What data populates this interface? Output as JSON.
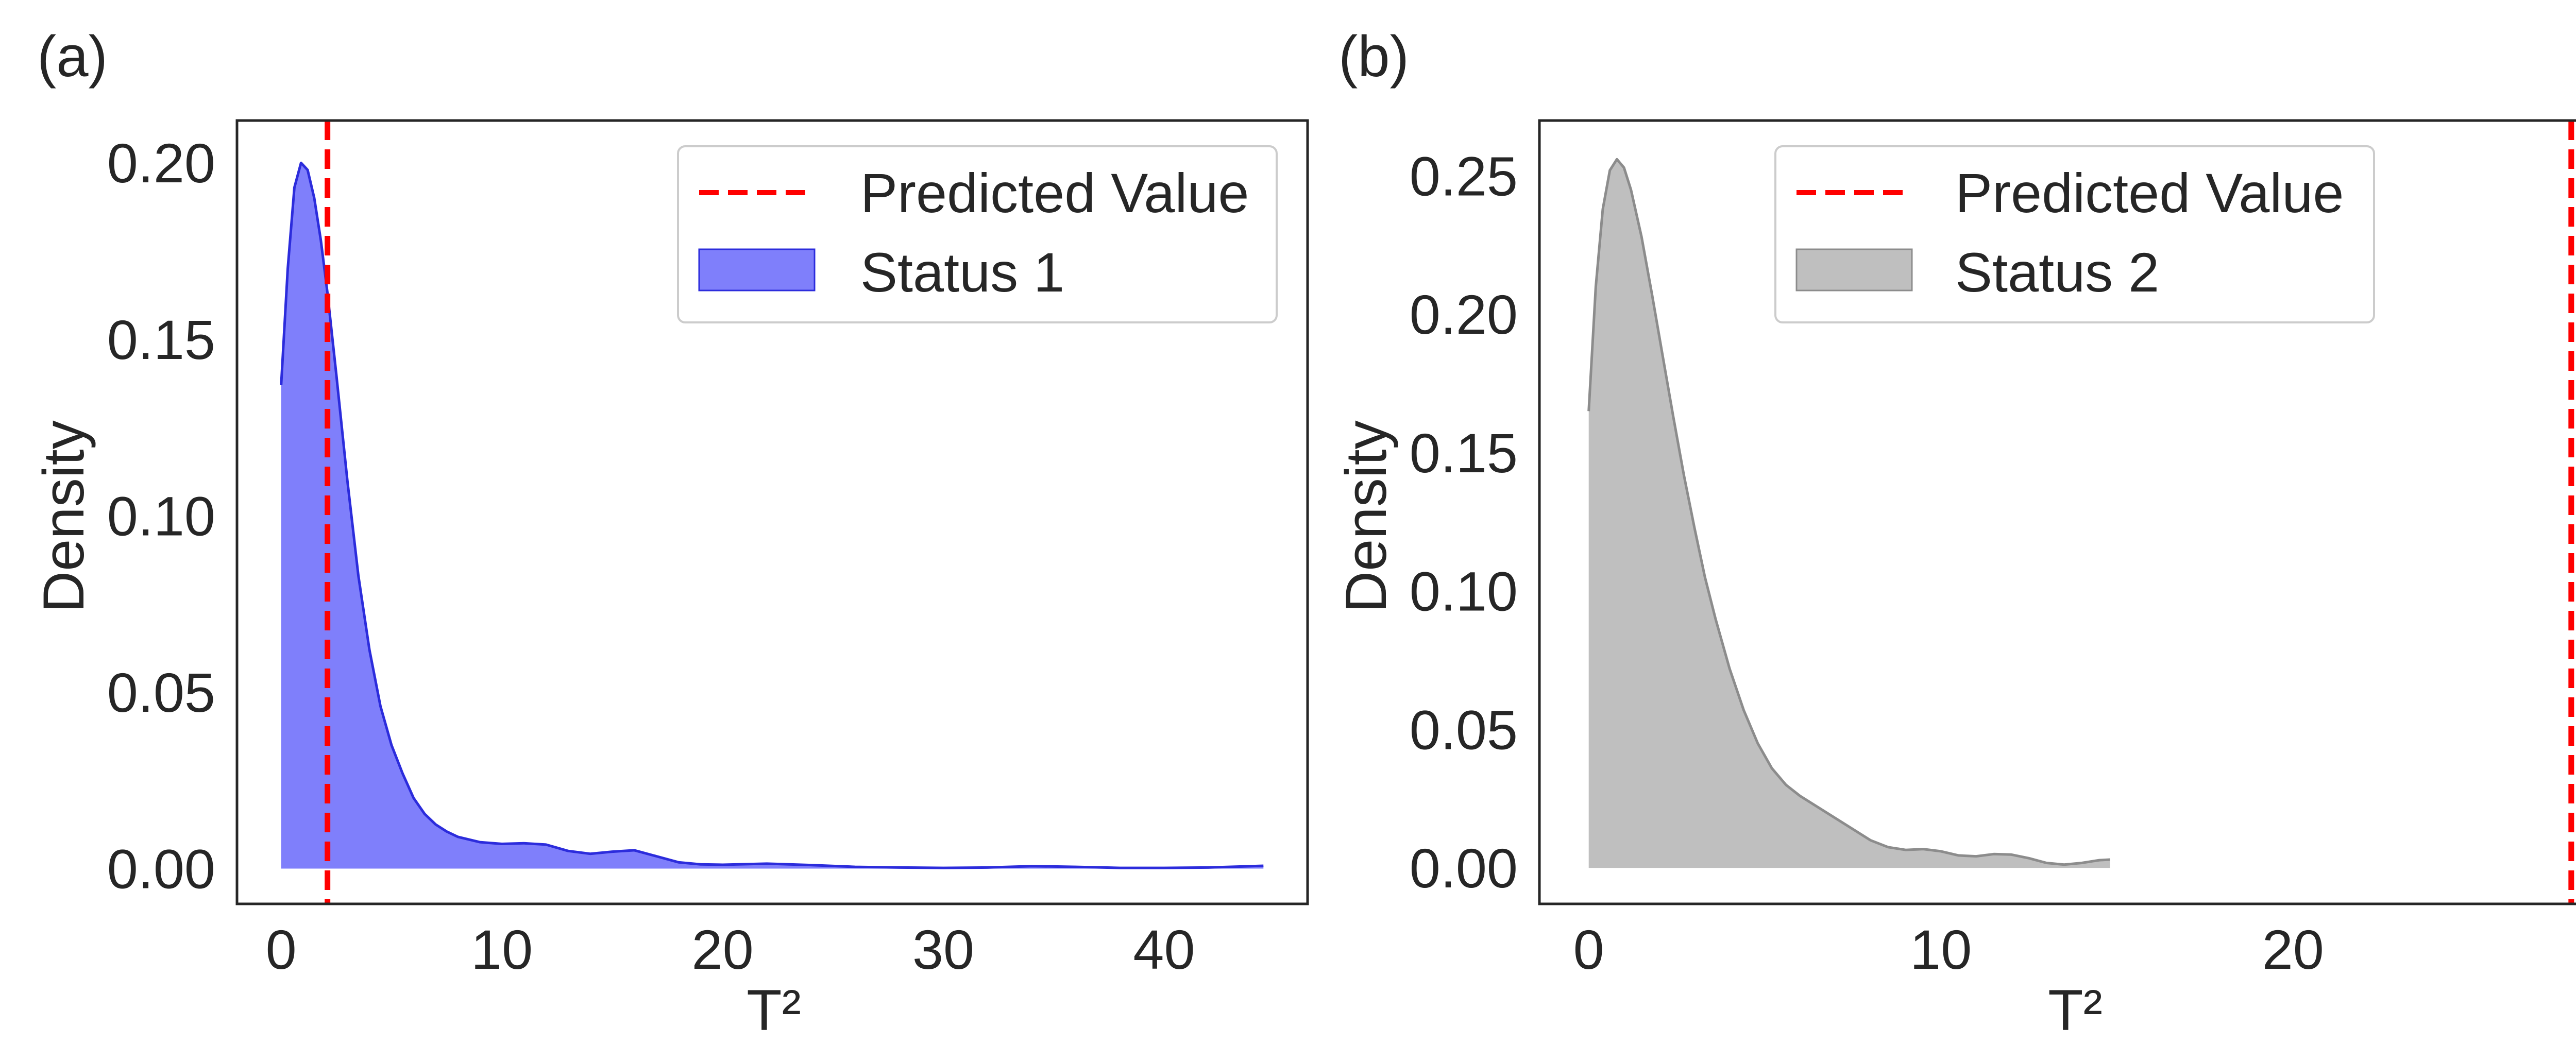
{
  "chart_data": [
    {
      "panel_label": "(a)",
      "type": "area",
      "xlabel": "T²",
      "ylabel": "Density",
      "xlim": [
        -2.0,
        46.5
      ],
      "ylim": [
        -0.01,
        0.212
      ],
      "xticks": [
        0,
        10,
        20,
        30,
        40
      ],
      "yticks": [
        0.0,
        0.05,
        0.1,
        0.15,
        0.2
      ],
      "xtick_labels": [
        "0",
        "10",
        "20",
        "30",
        "40"
      ],
      "ytick_labels": [
        "0.00",
        "0.05",
        "0.10",
        "0.15",
        "0.20"
      ],
      "grid": false,
      "legend_position": "upper right",
      "predicted_value": {
        "label": "Predicted Value",
        "x": 2.1,
        "color": "#ff0000"
      },
      "series": [
        {
          "name": "Status 1",
          "fill": "#7f7ffb",
          "stroke": "#2c2cdc",
          "x": [
            0.0,
            0.3,
            0.6,
            0.9,
            1.2,
            1.5,
            1.8,
            2.1,
            2.5,
            3.0,
            3.5,
            4.0,
            4.5,
            5.0,
            5.5,
            6.0,
            6.5,
            7.0,
            7.5,
            8.0,
            9.0,
            10.0,
            11.0,
            12.0,
            13.0,
            14.0,
            15.0,
            16.0,
            17.0,
            18.0,
            19.0,
            20.0,
            22.0,
            24.0,
            26.0,
            28.0,
            30.0,
            32.0,
            34.0,
            36.0,
            38.0,
            40.0,
            42.0,
            44.5
          ],
          "y": [
            0.137,
            0.17,
            0.193,
            0.2,
            0.198,
            0.19,
            0.178,
            0.163,
            0.14,
            0.11,
            0.083,
            0.062,
            0.046,
            0.035,
            0.027,
            0.02,
            0.0155,
            0.0125,
            0.0105,
            0.009,
            0.0075,
            0.007,
            0.0072,
            0.0068,
            0.005,
            0.0042,
            0.0048,
            0.0052,
            0.0035,
            0.0018,
            0.0012,
            0.0011,
            0.0014,
            0.001,
            0.0005,
            0.0003,
            0.0002,
            0.0003,
            0.0007,
            0.0005,
            0.0002,
            0.0002,
            0.0003,
            0.0008
          ]
        }
      ]
    },
    {
      "panel_label": "(b)",
      "type": "area",
      "xlabel": "T²",
      "ylabel": "Density",
      "xlim": [
        -1.4,
        29.0
      ],
      "ylim": [
        -0.013,
        0.27
      ],
      "xticks": [
        0,
        10,
        20
      ],
      "yticks": [
        0.0,
        0.05,
        0.1,
        0.15,
        0.2,
        0.25
      ],
      "xtick_labels": [
        "0",
        "10",
        "20"
      ],
      "ytick_labels": [
        "0.00",
        "0.05",
        "0.10",
        "0.15",
        "0.20",
        "0.25"
      ],
      "grid": false,
      "legend_position": "upper center",
      "predicted_value": {
        "label": "Predicted Value",
        "x": 27.9,
        "color": "#ff0000"
      },
      "series": [
        {
          "name": "Status 2",
          "fill": "#bfbfbf",
          "stroke": "#8c8c8c",
          "x": [
            0.0,
            0.2,
            0.4,
            0.6,
            0.8,
            1.0,
            1.2,
            1.5,
            1.8,
            2.1,
            2.4,
            2.7,
            3.0,
            3.3,
            3.6,
            4.0,
            4.4,
            4.8,
            5.2,
            5.6,
            6.0,
            6.5,
            7.0,
            7.5,
            8.0,
            8.5,
            9.0,
            9.5,
            10.0,
            10.5,
            11.0,
            11.5,
            12.0,
            12.5,
            13.0,
            13.5,
            14.0,
            14.5,
            14.8
          ],
          "y": [
            0.165,
            0.21,
            0.238,
            0.252,
            0.256,
            0.253,
            0.245,
            0.228,
            0.207,
            0.185,
            0.163,
            0.142,
            0.123,
            0.105,
            0.09,
            0.072,
            0.057,
            0.045,
            0.036,
            0.03,
            0.026,
            0.022,
            0.018,
            0.014,
            0.01,
            0.0075,
            0.0065,
            0.0068,
            0.006,
            0.0045,
            0.0042,
            0.005,
            0.0048,
            0.0035,
            0.0018,
            0.0012,
            0.0018,
            0.0028,
            0.003
          ]
        }
      ]
    }
  ]
}
